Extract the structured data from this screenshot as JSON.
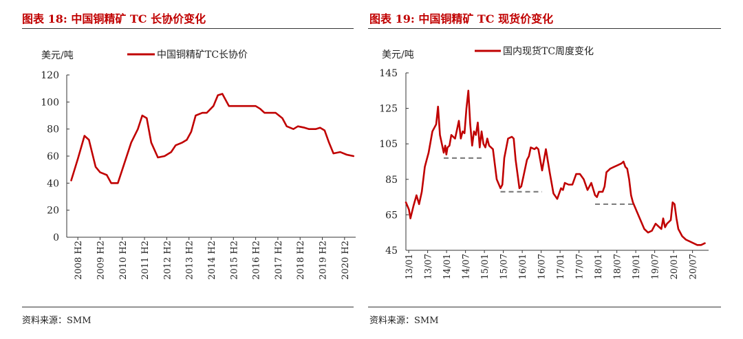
{
  "left": {
    "title": "图表 18:  中国铜精矿 TC 长协价变化",
    "source": "资料来源：SMM"
  },
  "right": {
    "title": "图表 19:  中国铜精矿 TC 现货价变化",
    "source": "资料来源：SMM"
  },
  "chart_data": [
    {
      "type": "line",
      "unit_label": "美元/吨",
      "ylim": [
        0,
        120
      ],
      "yticks": [
        0,
        20,
        40,
        60,
        80,
        100,
        120
      ],
      "xlim": [
        2008,
        2021
      ],
      "categories": [
        "2008 H2",
        "2009 H2",
        "2010 H2",
        "2011 H2",
        "2012 H2",
        "2013 H2",
        "2014 H2",
        "2015 H2",
        "2016 H2",
        "2017 H2",
        "2018 H2",
        "2019 H2",
        "2020 H2"
      ],
      "series": [
        {
          "name": "中国铜精矿TC长协价",
          "color": "#c00000",
          "x": [
            2008.2,
            2008.5,
            2008.8,
            2009.0,
            2009.3,
            2009.5,
            2009.8,
            2010.0,
            2010.3,
            2010.6,
            2010.9,
            2011.2,
            2011.4,
            2011.6,
            2011.8,
            2012.1,
            2012.4,
            2012.7,
            2012.9,
            2013.2,
            2013.4,
            2013.6,
            2013.8,
            2014.1,
            2014.3,
            2014.6,
            2014.8,
            2015.0,
            2015.3,
            2015.6,
            2015.9,
            2016.2,
            2016.5,
            2016.7,
            2016.9,
            2017.1,
            2017.4,
            2017.7,
            2017.9,
            2018.2,
            2018.4,
            2018.7,
            2018.9,
            2019.2,
            2019.4,
            2019.6,
            2019.8,
            2020.0,
            2020.3,
            2020.6,
            2020.9
          ],
          "values": [
            42,
            58,
            75,
            72,
            52,
            48,
            46,
            40,
            40,
            55,
            70,
            80,
            90,
            88,
            70,
            59,
            60,
            63,
            68,
            70,
            72,
            78,
            90,
            92,
            92,
            97,
            105,
            106,
            97,
            97,
            97,
            97,
            97,
            95,
            92,
            92,
            92,
            88,
            82,
            80,
            82,
            81,
            80,
            80,
            81,
            79,
            70,
            62,
            63,
            61,
            60
          ]
        }
      ]
    },
    {
      "type": "line",
      "unit_label": "美元/吨",
      "ylim": [
        45,
        145
      ],
      "yticks": [
        45,
        65,
        85,
        105,
        125,
        145
      ],
      "xlim": [
        2013.0,
        2021.0
      ],
      "categories": [
        "13/01",
        "13/07",
        "14/01",
        "14/07",
        "15/01",
        "15/07",
        "16/01",
        "16/07",
        "17/01",
        "17/07",
        "18/01",
        "18/07",
        "19/01",
        "19/07",
        "20/01",
        "20/07"
      ],
      "series": [
        {
          "name": "国内现货TC周度变化",
          "color": "#c00000",
          "x": [
            2013.0,
            2013.08,
            2013.12,
            2013.2,
            2013.28,
            2013.35,
            2013.42,
            2013.5,
            2013.55,
            2013.6,
            2013.7,
            2013.8,
            2013.85,
            2013.9,
            2014.0,
            2014.04,
            2014.07,
            2014.1,
            2014.15,
            2014.2,
            2014.3,
            2014.4,
            2014.45,
            2014.5,
            2014.55,
            2014.6,
            2014.65,
            2014.7,
            2014.75,
            2014.8,
            2014.85,
            2014.9,
            2014.95,
            2015.0,
            2015.05,
            2015.1,
            2015.15,
            2015.2,
            2015.3,
            2015.4,
            2015.5,
            2015.55,
            2015.6,
            2015.7,
            2015.8,
            2015.85,
            2015.9,
            2016.0,
            2016.05,
            2016.1,
            2016.2,
            2016.25,
            2016.3,
            2016.4,
            2016.45,
            2016.5,
            2016.6,
            2016.7,
            2016.8,
            2016.9,
            2017.0,
            2017.1,
            2017.15,
            2017.2,
            2017.3,
            2017.4,
            2017.5,
            2017.6,
            2017.7,
            2017.8,
            2017.9,
            2018.0,
            2018.05,
            2018.1,
            2018.2,
            2018.25,
            2018.3,
            2018.4,
            2018.5,
            2018.6,
            2018.7,
            2018.75,
            2018.8,
            2018.85,
            2018.9,
            2018.95,
            2019.0,
            2019.1,
            2019.2,
            2019.3,
            2019.4,
            2019.5,
            2019.55,
            2019.6,
            2019.7,
            2019.75,
            2019.8,
            2019.85,
            2019.9,
            2020.0,
            2020.05,
            2020.1,
            2020.15,
            2020.2,
            2020.3,
            2020.4,
            2020.5,
            2020.6,
            2020.7,
            2020.8,
            2020.9
          ],
          "values": [
            72,
            68,
            63,
            70,
            76,
            71,
            78,
            92,
            96,
            100,
            112,
            116,
            126,
            110,
            100,
            104,
            99,
            103,
            104,
            110,
            108,
            118,
            108,
            112,
            111,
            125,
            135,
            116,
            104,
            112,
            110,
            117,
            103,
            112,
            105,
            103,
            108,
            104,
            102,
            85,
            80,
            82,
            97,
            108,
            109,
            108,
            96,
            80,
            81,
            86,
            96,
            98,
            103,
            102,
            103,
            102,
            90,
            102,
            89,
            77,
            74,
            80,
            79,
            83,
            82,
            82,
            88,
            88,
            85,
            79,
            83,
            76,
            75,
            78,
            78,
            81,
            89,
            91,
            92,
            93,
            94,
            95,
            92,
            91,
            85,
            76,
            72,
            67,
            62,
            57,
            55,
            56,
            58,
            60,
            58,
            57,
            63,
            58,
            60,
            62,
            72,
            71,
            63,
            57,
            53,
            51,
            50,
            49,
            48,
            48,
            49
          ]
        }
      ],
      "reference_levels": [
        {
          "from": 2014.0,
          "to": 2015.0,
          "value": 97
        },
        {
          "from": 2015.5,
          "to": 2016.6,
          "value": 78
        },
        {
          "from": 2018.0,
          "to": 2019.0,
          "value": 71
        }
      ]
    }
  ]
}
